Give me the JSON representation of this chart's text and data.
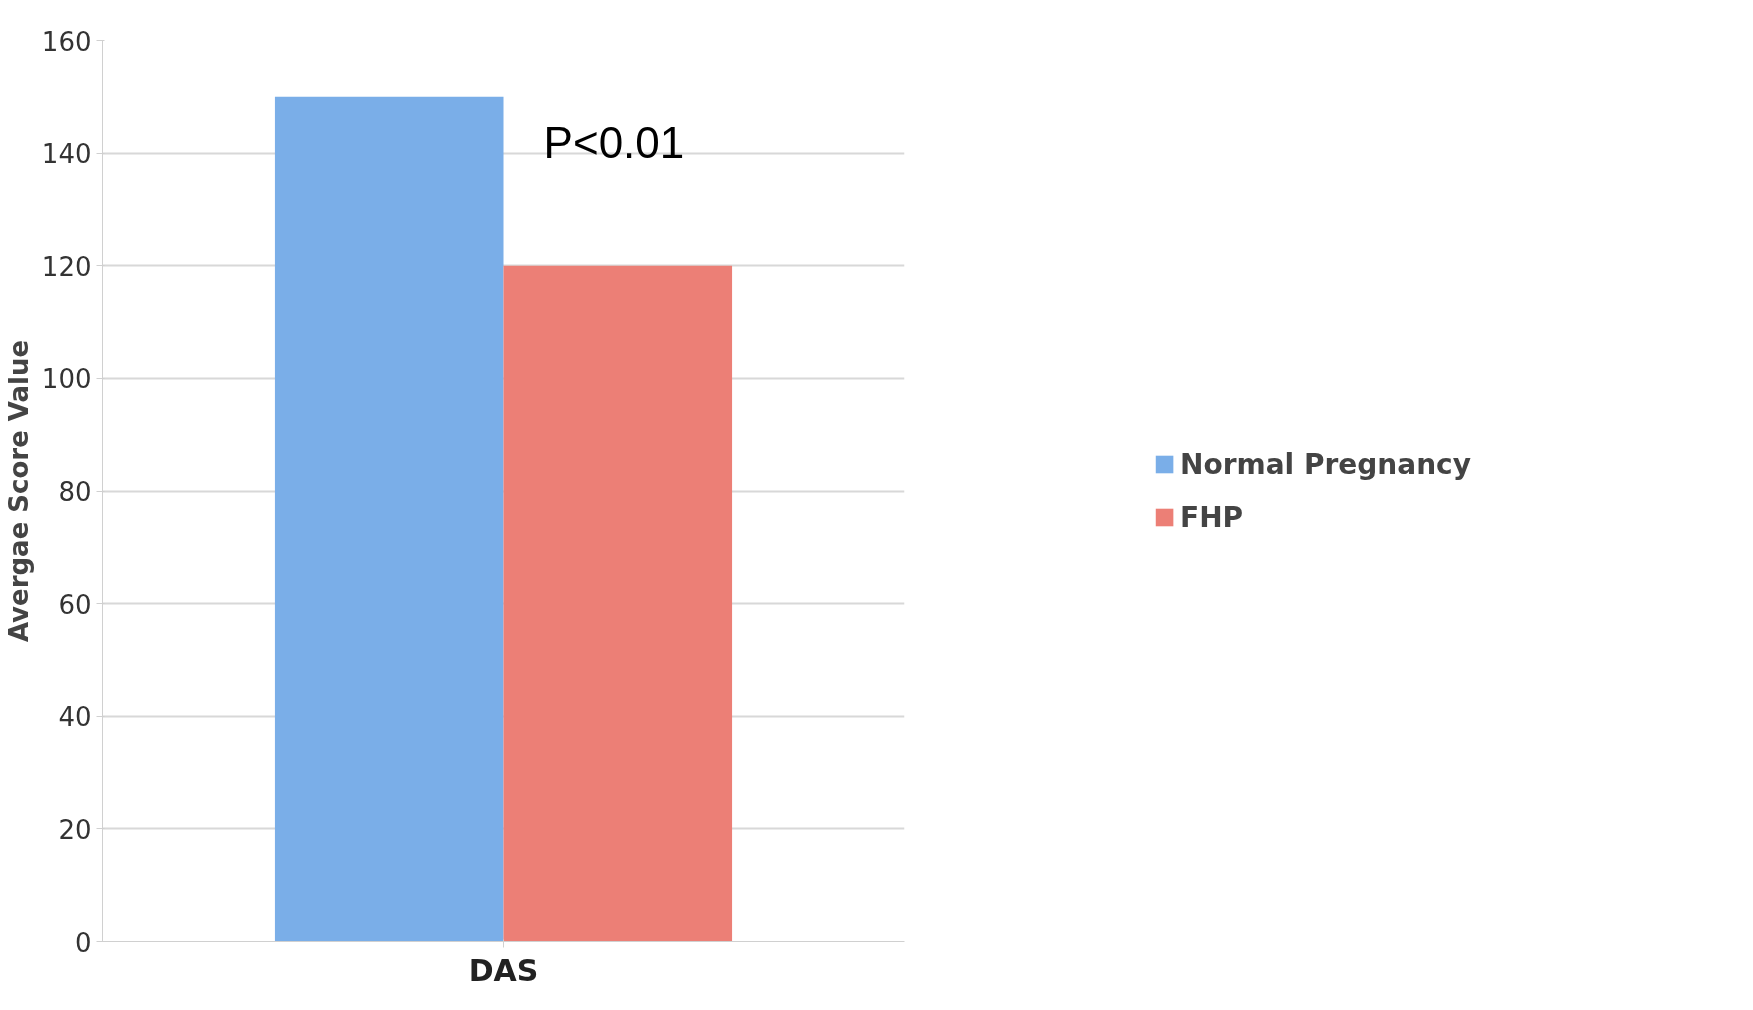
{
  "chart_data": {
    "type": "bar",
    "ylabel": "Avergae Score Value",
    "categories": [
      "DAS"
    ],
    "series": [
      {
        "name": "Normal Pregnancy",
        "color": "#7aaee8",
        "values": [
          150
        ]
      },
      {
        "name": "FHP",
        "color": "#ec7f76",
        "values": [
          120
        ]
      }
    ],
    "ylim": [
      0,
      160
    ],
    "yticks": [
      0,
      20,
      40,
      60,
      80,
      100,
      120,
      140,
      160
    ],
    "grid": "y",
    "legend": "right",
    "annotations": [
      "P<0.01"
    ]
  }
}
